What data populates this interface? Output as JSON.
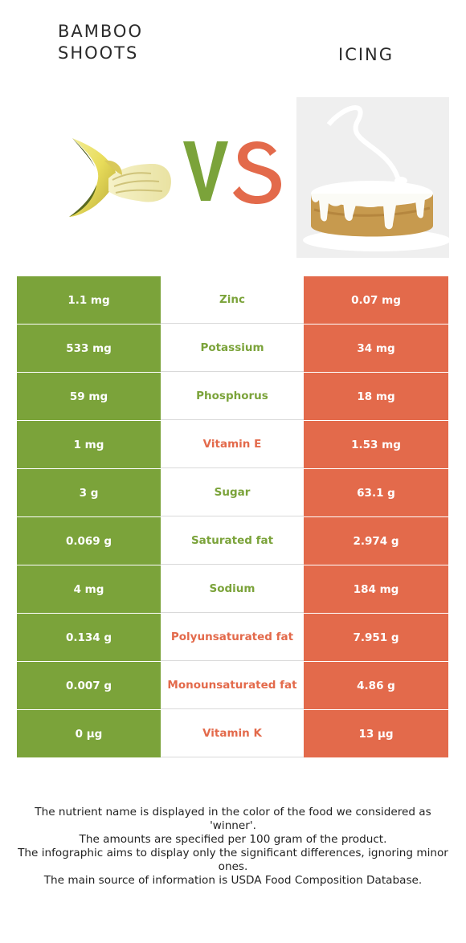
{
  "left_food": {
    "name_line1": "BAMBOO",
    "name_line2": "SHOOTS",
    "color": "#7ba33a"
  },
  "right_food": {
    "name": "ICING",
    "color": "#e36a4b"
  },
  "rows": [
    {
      "nutrient": "Zinc",
      "left": "1.1 mg",
      "right": "0.07 mg",
      "winner": "left"
    },
    {
      "nutrient": "Potassium",
      "left": "533 mg",
      "right": "34 mg",
      "winner": "left"
    },
    {
      "nutrient": "Phosphorus",
      "left": "59 mg",
      "right": "18 mg",
      "winner": "left"
    },
    {
      "nutrient": "Vitamin E",
      "left": "1 mg",
      "right": "1.53 mg",
      "winner": "right"
    },
    {
      "nutrient": "Sugar",
      "left": "3 g",
      "right": "63.1 g",
      "winner": "left"
    },
    {
      "nutrient": "Saturated fat",
      "left": "0.069 g",
      "right": "2.974 g",
      "winner": "left"
    },
    {
      "nutrient": "Sodium",
      "left": "4 mg",
      "right": "184 mg",
      "winner": "left"
    },
    {
      "nutrient": "Polyunsaturated fat",
      "left": "0.134 g",
      "right": "7.951 g",
      "winner": "right"
    },
    {
      "nutrient": "Monounsaturated fat",
      "left": "0.007 g",
      "right": "4.86 g",
      "winner": "right"
    },
    {
      "nutrient": "Vitamin K",
      "left": "0 µg",
      "right": "13 µg",
      "winner": "right"
    }
  ],
  "footer": {
    "line1": "The nutrient name is displayed in the color of the food we considered as 'winner'.",
    "line2": "The amounts are specified per 100 gram of the product.",
    "line3": "The infographic aims to display only the significant differences, ignoring minor ones.",
    "line4": "The main source of information is USDA Food Composition Database."
  }
}
